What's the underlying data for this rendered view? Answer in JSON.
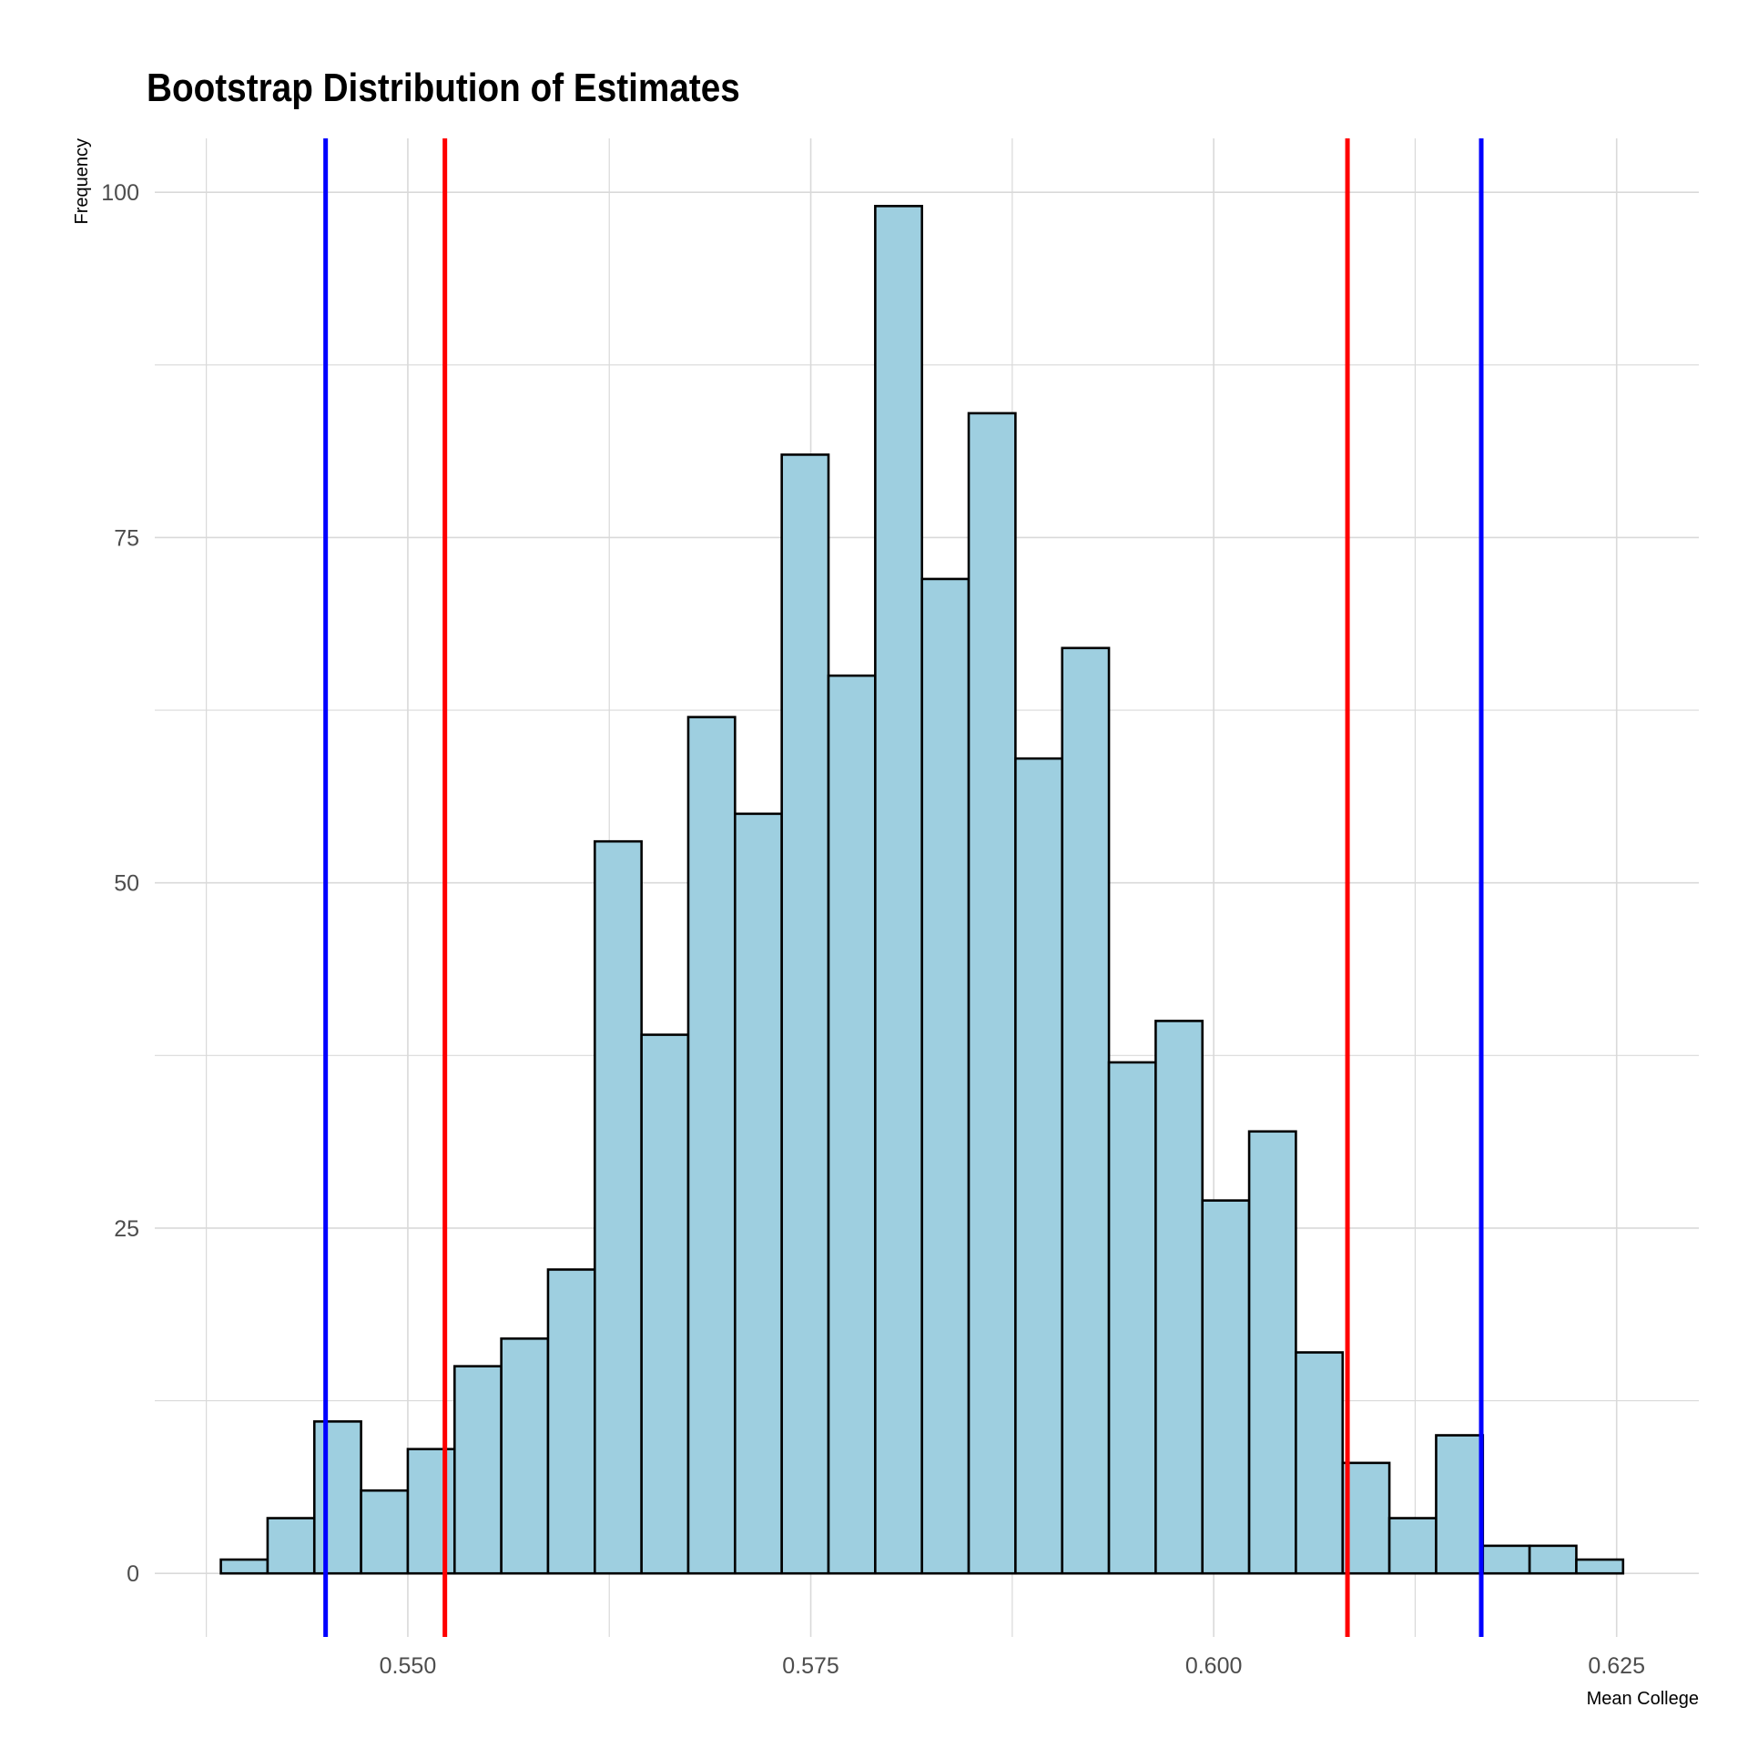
{
  "chart_data": {
    "type": "bar",
    "title": "Bootstrap Distribution of Estimates",
    "xlabel": "Mean College",
    "ylabel": "Frequency",
    "xlim": [
      0.5343,
      0.6301
    ],
    "ylim": [
      -4.6,
      103.9
    ],
    "x_ticks": [
      0.55,
      0.575,
      0.6,
      0.625
    ],
    "x_tick_labels": [
      "0.550",
      "0.575",
      "0.600",
      "0.625"
    ],
    "y_ticks": [
      0,
      25,
      50,
      75,
      100
    ],
    "y_tick_labels": [
      "0",
      "25",
      "50",
      "75",
      "100"
    ],
    "grid": true,
    "bin_width": 0.0029,
    "bins": [
      {
        "x0": 0.5384,
        "x1": 0.5413,
        "count": 1
      },
      {
        "x0": 0.5413,
        "x1": 0.5442,
        "count": 4
      },
      {
        "x0": 0.5442,
        "x1": 0.5471,
        "count": 11
      },
      {
        "x0": 0.5471,
        "x1": 0.55,
        "count": 6
      },
      {
        "x0": 0.55,
        "x1": 0.5529,
        "count": 9
      },
      {
        "x0": 0.5529,
        "x1": 0.5558,
        "count": 15
      },
      {
        "x0": 0.5558,
        "x1": 0.5587,
        "count": 17
      },
      {
        "x0": 0.5587,
        "x1": 0.5616,
        "count": 22
      },
      {
        "x0": 0.5616,
        "x1": 0.5645,
        "count": 53
      },
      {
        "x0": 0.5645,
        "x1": 0.5674,
        "count": 39
      },
      {
        "x0": 0.5674,
        "x1": 0.5703,
        "count": 62
      },
      {
        "x0": 0.5703,
        "x1": 0.5732,
        "count": 55
      },
      {
        "x0": 0.5732,
        "x1": 0.5761,
        "count": 81
      },
      {
        "x0": 0.5761,
        "x1": 0.579,
        "count": 65
      },
      {
        "x0": 0.579,
        "x1": 0.5819,
        "count": 99
      },
      {
        "x0": 0.5819,
        "x1": 0.5848,
        "count": 72
      },
      {
        "x0": 0.5848,
        "x1": 0.5877,
        "count": 84
      },
      {
        "x0": 0.5877,
        "x1": 0.5906,
        "count": 59
      },
      {
        "x0": 0.5906,
        "x1": 0.5935,
        "count": 67
      },
      {
        "x0": 0.5935,
        "x1": 0.5964,
        "count": 37
      },
      {
        "x0": 0.5964,
        "x1": 0.5993,
        "count": 40
      },
      {
        "x0": 0.5993,
        "x1": 0.6022,
        "count": 27
      },
      {
        "x0": 0.6022,
        "x1": 0.6051,
        "count": 32
      },
      {
        "x0": 0.6051,
        "x1": 0.608,
        "count": 16
      },
      {
        "x0": 0.608,
        "x1": 0.6109,
        "count": 8
      },
      {
        "x0": 0.6109,
        "x1": 0.6138,
        "count": 4
      },
      {
        "x0": 0.6138,
        "x1": 0.6167,
        "count": 10
      },
      {
        "x0": 0.6167,
        "x1": 0.6196,
        "count": 2
      },
      {
        "x0": 0.6196,
        "x1": 0.6225,
        "count": 2
      },
      {
        "x0": 0.6225,
        "x1": 0.6254,
        "count": 1
      }
    ],
    "vertical_lines": [
      {
        "x": 0.5449,
        "color": "#0000ff"
      },
      {
        "x": 0.5523,
        "color": "#ff0000"
      },
      {
        "x": 0.6083,
        "color": "#ff0000"
      },
      {
        "x": 0.6166,
        "color": "#0000ff"
      }
    ],
    "bar_fill": "#9ecfe0",
    "bar_stroke": "#000000",
    "grid_color": "#d9d9d9"
  }
}
